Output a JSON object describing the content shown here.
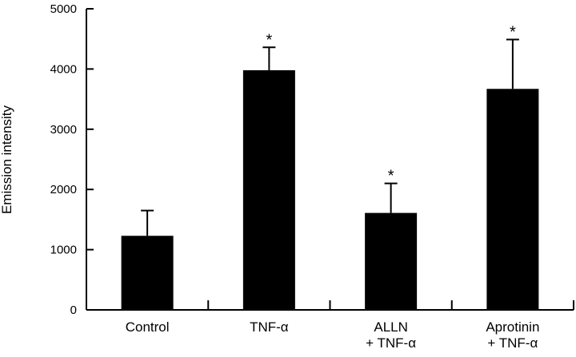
{
  "chart_data": {
    "type": "bar",
    "title": "",
    "xlabel": "",
    "ylabel": "Emission intensity",
    "ylim": [
      0,
      5000
    ],
    "yticks": [
      0,
      1000,
      2000,
      3000,
      4000,
      5000
    ],
    "categories": [
      {
        "lines": [
          "Control"
        ]
      },
      {
        "lines": [
          "TNF-α"
        ]
      },
      {
        "lines": [
          "ALLN",
          "+ TNF-α"
        ]
      },
      {
        "lines": [
          "Aprotinin",
          "+ TNF-α"
        ]
      }
    ],
    "values": [
      1230,
      3980,
      1610,
      3670
    ],
    "error_upper": [
      1650,
      4360,
      2100,
      4490
    ],
    "significance": [
      "",
      "*",
      "*",
      "*"
    ],
    "grid": false,
    "legend": "none"
  }
}
